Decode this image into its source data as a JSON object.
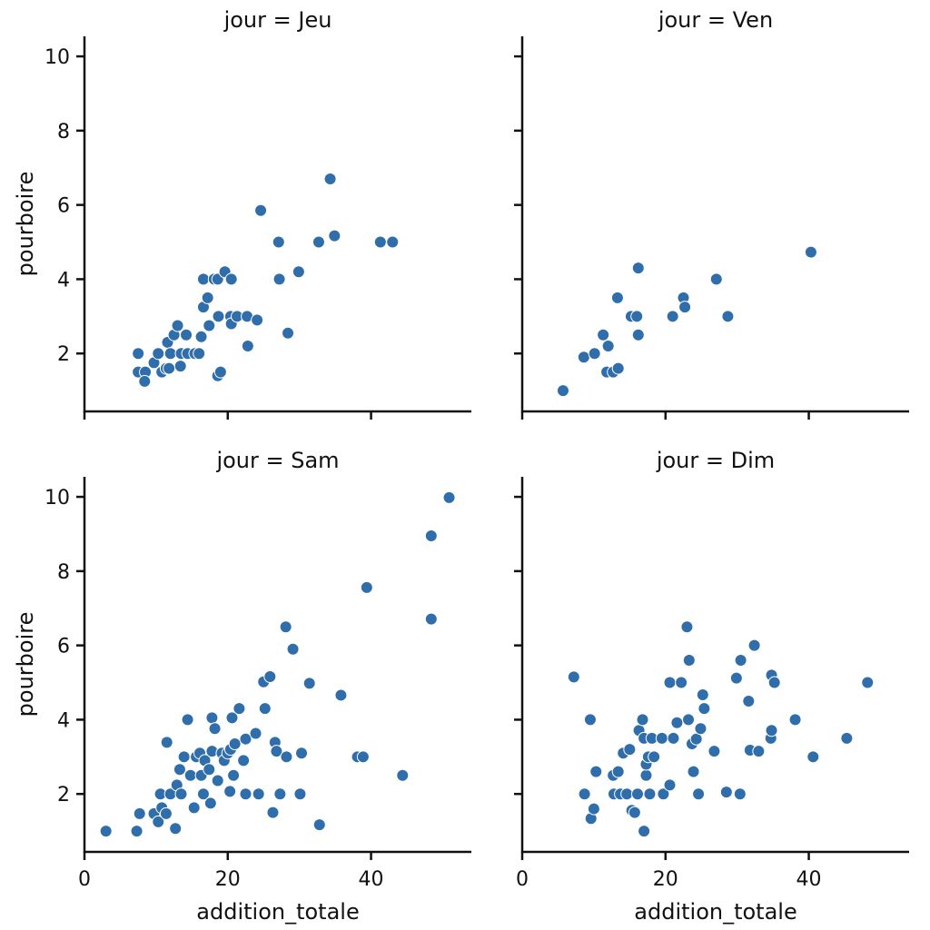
{
  "chart_data": [
    {
      "type": "scatter",
      "title": "jour = Jeu",
      "ylabel": "pourboire",
      "color": "#2f6eaa",
      "xlim": [
        0,
        54
      ],
      "ylim": [
        0.44,
        10.54
      ],
      "xticks": [
        0,
        20,
        40
      ],
      "yticks": [
        2,
        4,
        6,
        8,
        10
      ],
      "show_xtick_labels": false,
      "show_ytick_labels": true,
      "x": [
        7.5,
        7.5,
        8.5,
        8.4,
        9.7,
        10.3,
        10.8,
        11.4,
        11.6,
        12.0,
        12.5,
        13.0,
        13.4,
        14.2,
        11.8,
        13.5,
        14.4,
        15.4,
        16.0,
        16.3,
        16.6,
        16.6,
        17.2,
        17.4,
        18.1,
        18.6,
        18.7,
        18.6,
        19.0,
        19.6,
        20.4,
        20.5,
        20.5,
        21.3,
        22.7,
        22.8,
        24.1,
        24.6,
        27.1,
        27.2,
        28.4,
        29.9,
        32.7,
        34.3,
        34.9,
        41.3,
        43.0
      ],
      "y": [
        2.0,
        1.5,
        1.5,
        1.25,
        1.75,
        2.0,
        1.5,
        1.6,
        2.3,
        2.0,
        2.5,
        2.75,
        1.66,
        2.5,
        1.6,
        2.0,
        2.0,
        2.0,
        2.0,
        2.45,
        4.0,
        3.25,
        3.5,
        2.75,
        4.0,
        4.0,
        3.0,
        1.4,
        1.5,
        4.2,
        3.0,
        4.0,
        2.8,
        3.0,
        3.0,
        2.2,
        2.9,
        5.85,
        5.0,
        4.0,
        2.55,
        4.2,
        5.0,
        6.7,
        5.17,
        5.0,
        5.0
      ]
    },
    {
      "type": "scatter",
      "title": "jour = Ven",
      "color": "#2f6eaa",
      "xlim": [
        0,
        54
      ],
      "ylim": [
        0.44,
        10.54
      ],
      "xticks": [
        0,
        20,
        40
      ],
      "yticks": [
        2,
        4,
        6,
        8,
        10
      ],
      "show_xtick_labels": false,
      "show_ytick_labels": false,
      "x": [
        5.7,
        8.6,
        10.1,
        11.3,
        11.8,
        12.0,
        12.7,
        13.4,
        13.3,
        15.2,
        16.0,
        16.2,
        16.2,
        21.0,
        22.5,
        22.7,
        27.1,
        28.7,
        40.3
      ],
      "y": [
        1.0,
        1.9,
        2.0,
        2.5,
        1.5,
        2.2,
        1.5,
        1.6,
        3.5,
        3.0,
        3.0,
        4.3,
        2.5,
        3.0,
        3.5,
        3.25,
        4.0,
        3.0,
        4.73
      ]
    },
    {
      "type": "scatter",
      "title": "jour = Sam",
      "xlabel": "addition_totale",
      "ylabel": "pourboire",
      "color": "#2f6eaa",
      "xlim": [
        0,
        54
      ],
      "ylim": [
        0.44,
        10.54
      ],
      "xticks": [
        0,
        20,
        40
      ],
      "yticks": [
        2,
        4,
        6,
        8,
        10
      ],
      "show_xtick_labels": true,
      "show_ytick_labels": true,
      "x": [
        3.0,
        7.3,
        7.7,
        9.7,
        10.3,
        10.6,
        10.8,
        11.4,
        11.5,
        12.0,
        12.7,
        12.9,
        13.3,
        13.5,
        13.9,
        14.4,
        14.8,
        15.3,
        15.6,
        16.1,
        16.3,
        16.6,
        16.8,
        17.4,
        17.6,
        17.8,
        17.8,
        18.2,
        18.6,
        19.2,
        19.5,
        20.0,
        20.3,
        20.4,
        20.6,
        20.8,
        21.0,
        21.6,
        22.2,
        22.5,
        22.5,
        23.9,
        24.3,
        25.0,
        25.2,
        25.9,
        26.3,
        26.6,
        26.8,
        27.3,
        28.1,
        28.2,
        29.1,
        30.1,
        30.3,
        31.4,
        32.8,
        35.8,
        38.1,
        38.9,
        39.4,
        44.4,
        48.4,
        48.4,
        50.9
      ],
      "y": [
        1.0,
        1.0,
        1.47,
        1.47,
        1.25,
        2.0,
        1.63,
        1.47,
        3.39,
        2.0,
        1.07,
        2.24,
        2.66,
        2.0,
        3.0,
        4.0,
        2.5,
        1.63,
        3.0,
        3.1,
        2.5,
        2.0,
        2.9,
        2.66,
        1.75,
        4.05,
        3.15,
        3.76,
        2.36,
        3.1,
        2.9,
        3.1,
        2.07,
        3.2,
        4.05,
        2.5,
        3.35,
        4.3,
        2.9,
        2.0,
        3.48,
        3.63,
        2.0,
        5.02,
        4.3,
        5.16,
        1.5,
        3.39,
        3.15,
        2.0,
        6.5,
        3.0,
        5.9,
        2.0,
        3.1,
        4.98,
        1.17,
        4.66,
        3.0,
        3.0,
        7.56,
        2.5,
        8.95,
        6.71,
        9.98
      ]
    },
    {
      "type": "scatter",
      "title": "jour = Dim",
      "xlabel": "addition_totale",
      "color": "#2f6eaa",
      "xlim": [
        0,
        54
      ],
      "ylim": [
        0.44,
        10.54
      ],
      "xticks": [
        0,
        20,
        40
      ],
      "yticks": [
        2,
        4,
        6,
        8,
        10
      ],
      "show_xtick_labels": true,
      "show_ytick_labels": false,
      "x": [
        7.2,
        8.7,
        9.5,
        9.6,
        10.0,
        10.3,
        12.7,
        12.8,
        13.4,
        13.7,
        14.1,
        14.6,
        15.0,
        15.3,
        15.7,
        16.1,
        16.3,
        16.8,
        17.0,
        17.0,
        17.3,
        17.3,
        17.6,
        17.8,
        18.1,
        18.4,
        19.5,
        19.7,
        20.6,
        20.6,
        21.1,
        21.6,
        22.2,
        23.0,
        23.2,
        23.3,
        23.7,
        23.9,
        24.3,
        24.6,
        24.9,
        25.2,
        25.4,
        26.8,
        28.5,
        29.9,
        30.4,
        30.5,
        31.6,
        31.8,
        32.4,
        33.0,
        34.7,
        34.8,
        34.8,
        35.2,
        38.1,
        40.6,
        45.3,
        48.2
      ],
      "y": [
        5.15,
        2.0,
        4.0,
        1.34,
        1.6,
        2.6,
        2.5,
        2.0,
        2.6,
        2.0,
        3.1,
        2.0,
        3.2,
        1.56,
        1.5,
        2.0,
        3.71,
        4.0,
        3.5,
        1.0,
        2.5,
        2.8,
        3.0,
        2.0,
        3.5,
        3.0,
        3.5,
        2.0,
        2.24,
        5.0,
        3.5,
        3.92,
        5.0,
        6.5,
        4.0,
        5.6,
        3.35,
        2.6,
        3.48,
        2.0,
        3.76,
        4.67,
        4.3,
        3.15,
        2.05,
        5.12,
        2.0,
        5.6,
        4.5,
        3.18,
        6.0,
        3.15,
        3.5,
        5.2,
        3.71,
        5.0,
        4.0,
        3.0,
        3.5,
        5.0
      ]
    }
  ]
}
